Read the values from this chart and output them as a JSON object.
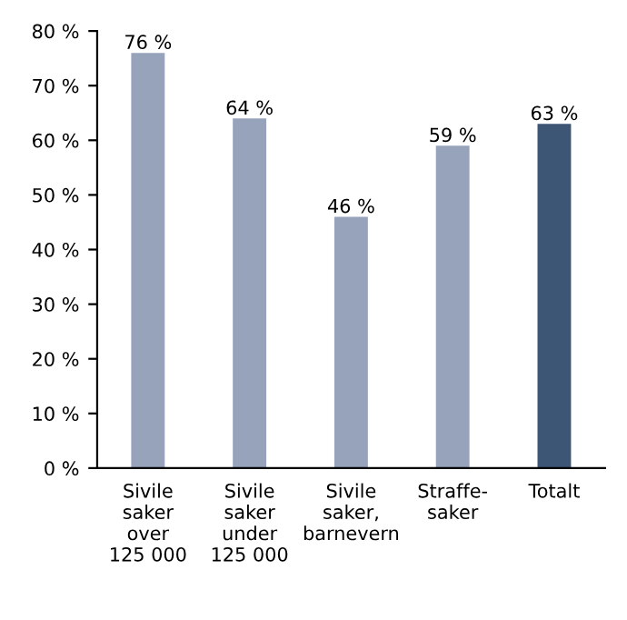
{
  "chart_data": {
    "type": "bar",
    "categories": [
      "Sivile\nsaker\nover\n125 000",
      "Sivile\nsaker\nunder\n125 000",
      "Sivile\nsaker,\nbarnevern",
      "Straffe-\nsaker",
      "Totalt"
    ],
    "values": [
      76,
      64,
      46,
      59,
      63
    ],
    "colors": [
      "#97a3bb",
      "#97a3bb",
      "#97a3bb",
      "#97a3bb",
      "#3e5676"
    ],
    "value_labels": [
      "76 %",
      "64 %",
      "46 %",
      "59 %",
      "63 %"
    ],
    "ylim": [
      0,
      80
    ],
    "yticks": [
      {
        "value": 0,
        "label": "0 %"
      },
      {
        "value": 10,
        "label": "10 %"
      },
      {
        "value": 20,
        "label": "20 %"
      },
      {
        "value": 30,
        "label": "30 %"
      },
      {
        "value": 40,
        "label": "40 %"
      },
      {
        "value": 50,
        "label": "50 %"
      },
      {
        "value": 60,
        "label": "60 %"
      },
      {
        "value": 70,
        "label": "70 %"
      },
      {
        "value": 80,
        "label": "80 %"
      }
    ],
    "grid": false
  }
}
